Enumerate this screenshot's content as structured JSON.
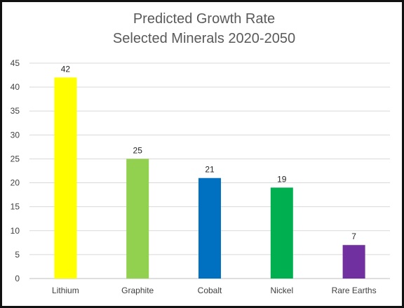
{
  "chart_data": {
    "type": "bar",
    "title": [
      "Predicted Growth Rate",
      "Selected Minerals 2020-2050"
    ],
    "xlabel": "",
    "ylabel": "",
    "categories": [
      "Lithium",
      "Graphite",
      "Cobalt",
      "Nickel",
      "Rare Earths"
    ],
    "values": [
      42,
      25,
      21,
      19,
      7
    ],
    "colors": [
      "#FFFF00",
      "#92D050",
      "#0070C0",
      "#00B050",
      "#7030A0"
    ],
    "ylim": [
      0,
      45
    ],
    "yticks": [
      0,
      5,
      10,
      15,
      20,
      25,
      30,
      35,
      40,
      45
    ],
    "grid": true,
    "legend": "none",
    "data_labels": true
  }
}
